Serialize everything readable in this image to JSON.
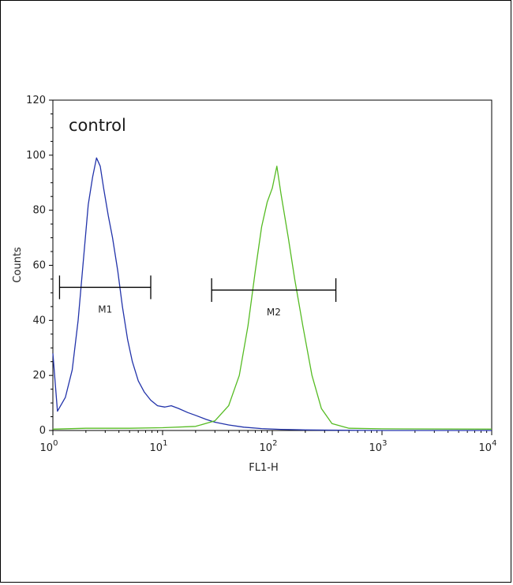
{
  "chart_data": {
    "type": "line",
    "title": "",
    "xlabel": "FL1-H",
    "ylabel": "Counts",
    "xscale": "log",
    "xlim": [
      1,
      10000
    ],
    "ylim": [
      0,
      120
    ],
    "x_ticks": [
      {
        "base": "10",
        "exp": "0"
      },
      {
        "base": "10",
        "exp": "1"
      },
      {
        "base": "10",
        "exp": "2"
      },
      {
        "base": "10",
        "exp": "3"
      },
      {
        "base": "10",
        "exp": "4"
      }
    ],
    "y_ticks": [
      "0",
      "20",
      "40",
      "60",
      "80",
      "100",
      "120"
    ],
    "annotation": "control",
    "grid": false,
    "series": [
      {
        "color": "#2233aa",
        "x": [
          1.0,
          1.1,
          1.3,
          1.5,
          1.7,
          1.9,
          2.1,
          2.3,
          2.5,
          2.7,
          2.9,
          3.2,
          3.5,
          3.9,
          4.3,
          4.8,
          5.3,
          6.0,
          6.8,
          7.8,
          9.0,
          10.5,
          12.0,
          14.0,
          17.0,
          20.0,
          25.0,
          30.0,
          40.0,
          55.0,
          80.0,
          120.0,
          200.0,
          400.0,
          1000.0,
          10000.0
        ],
        "y": [
          28.0,
          7.0,
          12.0,
          22.0,
          40.0,
          62.0,
          82.0,
          92.0,
          99.0,
          96.0,
          88.0,
          78.0,
          70.0,
          58.0,
          45.0,
          33.0,
          25.0,
          18.0,
          14.0,
          11.0,
          9.0,
          8.5,
          9.0,
          8.0,
          6.5,
          5.5,
          4.0,
          3.0,
          2.0,
          1.2,
          0.7,
          0.4,
          0.2,
          0.1,
          0.0,
          0.0
        ]
      },
      {
        "color": "#55bb22",
        "x": [
          1.0,
          2.0,
          5.0,
          10.0,
          20.0,
          30.0,
          40.0,
          50.0,
          60.0,
          70.0,
          80.0,
          90.0,
          100.0,
          110.0,
          120.0,
          140.0,
          160.0,
          190.0,
          230.0,
          280.0,
          350.0,
          500.0,
          1000.0,
          10000.0
        ],
        "y": [
          0.5,
          0.8,
          0.8,
          1.0,
          1.5,
          3.5,
          9.0,
          20.0,
          38.0,
          58.0,
          74.0,
          83.0,
          88.0,
          96.0,
          86.0,
          70.0,
          55.0,
          38.0,
          20.0,
          8.0,
          2.5,
          0.8,
          0.6,
          0.5
        ]
      }
    ],
    "markers": [
      {
        "label": "M1",
        "x_start": 1.15,
        "x_end": 7.8,
        "y": 52
      },
      {
        "label": "M2",
        "x_start": 28.0,
        "x_end": 380.0,
        "y": 51
      }
    ]
  }
}
